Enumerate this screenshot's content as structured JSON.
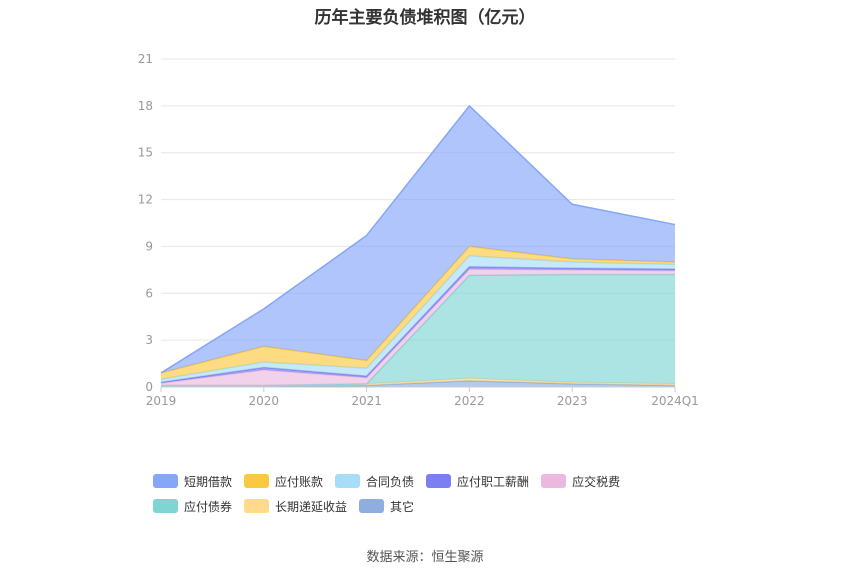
{
  "title": "历年主要负债堆积图（亿元）",
  "source": "数据来源：恒生聚源",
  "chart_data": {
    "type": "area",
    "stacked": true,
    "title": "历年主要负债堆积图（亿元）",
    "categories": [
      "2019",
      "2020",
      "2021",
      "2022",
      "2023",
      "2024Q1"
    ],
    "ylim": [
      0,
      21
    ],
    "yticks": [
      0,
      3,
      6,
      9,
      12,
      15,
      18,
      21
    ],
    "grid": true,
    "legend_position": "bottom",
    "series": [
      {
        "name": "其它",
        "color": "#8eaee0",
        "values": [
          0.05,
          0.05,
          0.1,
          0.4,
          0.2,
          0.1
        ]
      },
      {
        "name": "长期递延收益",
        "color": "#ffd98c",
        "values": [
          0.05,
          0.05,
          0.1,
          0.15,
          0.1,
          0.1
        ]
      },
      {
        "name": "应付债券",
        "color": "#7fd4d4",
        "values": [
          0,
          0,
          0,
          6.6,
          6.9,
          7.0
        ]
      },
      {
        "name": "应交税费",
        "color": "#ebb8df",
        "values": [
          0.15,
          1.0,
          0.4,
          0.4,
          0.3,
          0.25
        ]
      },
      {
        "name": "应付职工薪酬",
        "color": "#7b7ff0",
        "values": [
          0.05,
          0.15,
          0.1,
          0.15,
          0.1,
          0.1
        ]
      },
      {
        "name": "合同负债",
        "color": "#a8ddf7",
        "values": [
          0.2,
          0.35,
          0.5,
          0.7,
          0.4,
          0.3
        ]
      },
      {
        "name": "应付账款",
        "color": "#fbc841",
        "values": [
          0.4,
          1.0,
          0.5,
          0.6,
          0.2,
          0.15
        ]
      },
      {
        "name": "短期借款",
        "color": "#86a6fa",
        "values": [
          0,
          2.4,
          8.0,
          9.0,
          3.5,
          2.4
        ]
      }
    ],
    "legend_order": [
      "短期借款",
      "应付账款",
      "合同负债",
      "应付职工薪酬",
      "应交税费",
      "应付债券",
      "长期递延收益",
      "其它"
    ]
  }
}
